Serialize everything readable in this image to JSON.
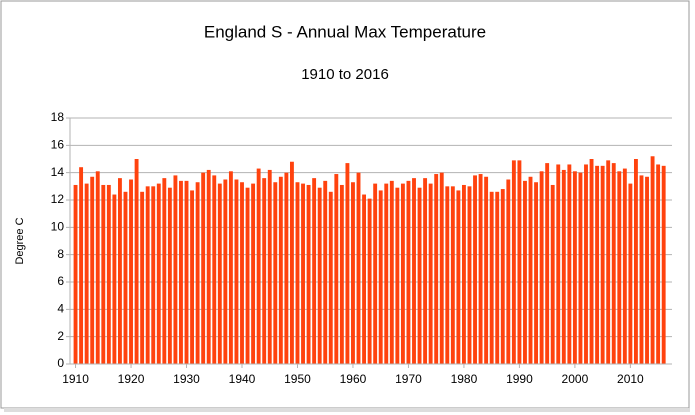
{
  "chart_data": {
    "type": "bar",
    "title": "England S - Annual Max Temperature",
    "subtitle": "1910 to 2016",
    "y_label": "Degree C",
    "color": "#ff420e",
    "grid": true,
    "xlim": [
      1909,
      2017.5
    ],
    "xticks": [
      1910,
      1920,
      1930,
      1940,
      1950,
      1960,
      1970,
      1980,
      1990,
      2000,
      2010
    ],
    "ylim": [
      0,
      18
    ],
    "yticks": [
      0,
      2,
      4,
      6,
      8,
      10,
      12,
      14,
      16,
      18
    ],
    "x": [
      1910,
      1911,
      1912,
      1913,
      1914,
      1915,
      1916,
      1917,
      1918,
      1919,
      1920,
      1921,
      1922,
      1923,
      1924,
      1925,
      1926,
      1927,
      1928,
      1929,
      1930,
      1931,
      1932,
      1933,
      1934,
      1935,
      1936,
      1937,
      1938,
      1939,
      1940,
      1941,
      1942,
      1943,
      1944,
      1945,
      1946,
      1947,
      1948,
      1949,
      1950,
      1951,
      1952,
      1953,
      1954,
      1955,
      1956,
      1957,
      1958,
      1959,
      1960,
      1961,
      1962,
      1963,
      1964,
      1965,
      1966,
      1967,
      1968,
      1969,
      1970,
      1971,
      1972,
      1973,
      1974,
      1975,
      1976,
      1977,
      1978,
      1979,
      1980,
      1981,
      1982,
      1983,
      1984,
      1985,
      1986,
      1987,
      1988,
      1989,
      1990,
      1991,
      1992,
      1993,
      1994,
      1995,
      1996,
      1997,
      1998,
      1999,
      2000,
      2001,
      2002,
      2003,
      2004,
      2005,
      2006,
      2007,
      2008,
      2009,
      2010,
      2011,
      2012,
      2013,
      2014,
      2015,
      2016
    ],
    "values": [
      13.1,
      14.4,
      13.2,
      13.7,
      14.1,
      13.1,
      13.1,
      12.4,
      13.6,
      12.6,
      13.5,
      15.0,
      12.6,
      13.0,
      13.0,
      13.2,
      13.6,
      12.9,
      13.8,
      13.4,
      13.4,
      12.7,
      13.3,
      14.0,
      14.2,
      13.8,
      13.2,
      13.5,
      14.1,
      13.5,
      13.3,
      12.9,
      13.2,
      14.3,
      13.6,
      14.2,
      13.3,
      13.7,
      14.0,
      14.8,
      13.3,
      13.2,
      13.1,
      13.6,
      12.9,
      13.4,
      12.6,
      13.9,
      13.1,
      14.7,
      13.3,
      14.0,
      12.4,
      12.1,
      13.2,
      12.7,
      13.2,
      13.4,
      12.9,
      13.2,
      13.4,
      13.6,
      12.9,
      13.6,
      13.2,
      13.9,
      14.0,
      13.0,
      13.0,
      12.7,
      13.1,
      13.0,
      13.8,
      13.9,
      13.7,
      12.6,
      12.6,
      12.8,
      13.5,
      14.9,
      14.9,
      13.4,
      13.7,
      13.3,
      14.1,
      14.7,
      13.1,
      14.6,
      14.2,
      14.6,
      14.1,
      14.0,
      14.6,
      15.0,
      14.5,
      14.5,
      14.9,
      14.7,
      14.1,
      14.3,
      13.2,
      15.0,
      13.8,
      13.7,
      15.2,
      14.6,
      14.5
    ]
  }
}
